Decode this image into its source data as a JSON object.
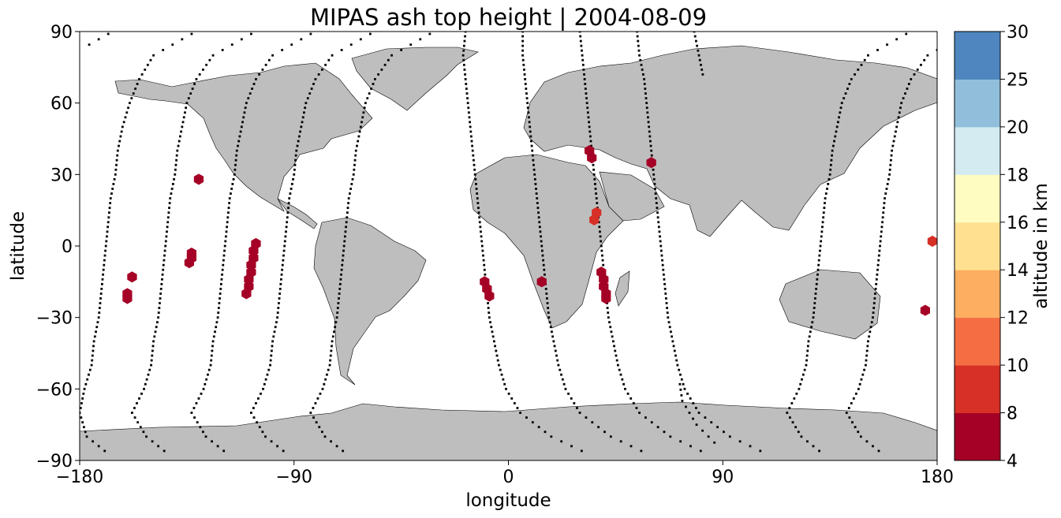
{
  "chart_data": {
    "type": "scatter",
    "title": "MIPAS ash top height | 2004-08-09",
    "xlabel": "longitude",
    "ylabel": "latitude",
    "xlim": [
      -180,
      180
    ],
    "ylim": [
      -90,
      90
    ],
    "xticks": [
      -180,
      -90,
      0,
      90,
      180
    ],
    "yticks": [
      -90,
      -60,
      -30,
      0,
      30,
      60,
      90
    ],
    "xtick_labels": [
      "−180",
      "−90",
      "0",
      "90",
      "180"
    ],
    "ytick_labels": [
      "−90",
      "−60",
      "−30",
      "0",
      "30",
      "60",
      "90"
    ],
    "basemap": "world land masses in grey (#bebebe) on white ocean, equirectangular projection",
    "colorbar": {
      "label": "altitude in km",
      "bounds": [
        4,
        8,
        10,
        12,
        14,
        16,
        18,
        20,
        25,
        30
      ],
      "tick_labels": [
        "4",
        "8",
        "10",
        "12",
        "14",
        "16",
        "18",
        "20",
        "25",
        "30"
      ],
      "colors": [
        "#a50026",
        "#d73027",
        "#f46d43",
        "#fdae61",
        "#fee090",
        "#fefcc0",
        "#d4ebf2",
        "#91bfdb",
        "#4f86c0",
        "#313695"
      ]
    },
    "series": [
      {
        "kind": "ash detections",
        "colors": {
          "7": "#a50026",
          "9": "#d73027"
        },
        "points": [
          {
            "lon": -130,
            "lat": 28,
            "alt": 7
          },
          {
            "lon": -158,
            "lat": -13,
            "alt": 7
          },
          {
            "lon": -160,
            "lat": -20,
            "alt": 7
          },
          {
            "lon": -160,
            "lat": -22,
            "alt": 7
          },
          {
            "lon": -133,
            "lat": -3,
            "alt": 7
          },
          {
            "lon": -133,
            "lat": -5,
            "alt": 7
          },
          {
            "lon": -134,
            "lat": -7,
            "alt": 7
          },
          {
            "lon": -106,
            "lat": 1,
            "alt": 7
          },
          {
            "lon": -107,
            "lat": -2,
            "alt": 7
          },
          {
            "lon": -107,
            "lat": -5,
            "alt": 7
          },
          {
            "lon": -108,
            "lat": -8,
            "alt": 7
          },
          {
            "lon": -108,
            "lat": -11,
            "alt": 7
          },
          {
            "lon": -109,
            "lat": -14,
            "alt": 7
          },
          {
            "lon": -109,
            "lat": -17,
            "alt": 7
          },
          {
            "lon": -110,
            "lat": -20,
            "alt": 7
          },
          {
            "lon": -10,
            "lat": -15,
            "alt": 7
          },
          {
            "lon": -9,
            "lat": -18,
            "alt": 7
          },
          {
            "lon": -8,
            "lat": -21,
            "alt": 7
          },
          {
            "lon": 14,
            "lat": -15,
            "alt": 7
          },
          {
            "lon": 34,
            "lat": 40,
            "alt": 7
          },
          {
            "lon": 35,
            "lat": 37,
            "alt": 7
          },
          {
            "lon": 60,
            "lat": 35,
            "alt": 7
          },
          {
            "lon": 37,
            "lat": 14,
            "alt": 9
          },
          {
            "lon": 36,
            "lat": 11,
            "alt": 9
          },
          {
            "lon": 39,
            "lat": -11,
            "alt": 7
          },
          {
            "lon": 40,
            "lat": -14,
            "alt": 7
          },
          {
            "lon": 40,
            "lat": -17,
            "alt": 7
          },
          {
            "lon": 41,
            "lat": -20,
            "alt": 7
          },
          {
            "lon": 41,
            "lat": -22,
            "alt": 7
          },
          {
            "lon": 178,
            "lat": 2,
            "alt": 9
          },
          {
            "lon": 175,
            "lat": -27,
            "alt": 7
          }
        ]
      },
      {
        "kind": "MIPAS orbit track (measurement locations)",
        "color": "#000000",
        "tracks": [
          {
            "lat": [
              89,
              80,
              70,
              60,
              50,
              40,
              30,
              20,
              10,
              0,
              -10,
              -20,
              -30,
              -40,
              -50,
              -60,
              -70,
              -80,
              -88
            ],
            "lon": [
              -133,
              -149,
              -155,
              -159,
              -162,
              -164,
              -165,
              -167,
              -168,
              -169,
              -170,
              -171,
              -172,
              -174,
              -175,
              -178,
              -180,
              -177,
              -167
            ]
          },
          {
            "lat": [
              89,
              80,
              70,
              60,
              50,
              40,
              30,
              20,
              10,
              0,
              -10,
              -20,
              -30,
              -40,
              -50,
              -60,
              -70,
              -80,
              -88
            ],
            "lon": [
              -108,
              -124,
              -131,
              -135,
              -137,
              -139,
              -140,
              -142,
              -143,
              -144,
              -145,
              -146,
              -147,
              -149,
              -150,
              -153,
              -158,
              -152,
              -142
            ]
          },
          {
            "lat": [
              89,
              80,
              70,
              60,
              50,
              40,
              30,
              20,
              10,
              0,
              -10,
              -20,
              -30,
              -40,
              -50,
              -60,
              -70,
              -80,
              -88
            ],
            "lon": [
              -83,
              -99,
              -106,
              -110,
              -112,
              -114,
              -115,
              -117,
              -118,
              -119,
              -120,
              -121,
              -122,
              -124,
              -125,
              -128,
              -133,
              -127,
              -117
            ]
          },
          {
            "lat": [
              89,
              80,
              70,
              60,
              50,
              40,
              30,
              20,
              10,
              0,
              -10,
              -20,
              -30,
              -40,
              -50,
              -60,
              -70,
              -80,
              -88
            ],
            "lon": [
              -58,
              -74,
              -81,
              -85,
              -87,
              -89,
              -90,
              -92,
              -93,
              -94,
              -95,
              -96,
              -97,
              -99,
              -100,
              -103,
              -108,
              -102,
              -92
            ]
          },
          {
            "lat": [
              89,
              80,
              70,
              60,
              50,
              40,
              30,
              20,
              10,
              0,
              -10,
              -20,
              -30,
              -40,
              -50,
              -60,
              -70,
              -80,
              -88
            ],
            "lon": [
              -33,
              -49,
              -56,
              -60,
              -62,
              -64,
              -65,
              -67,
              -68,
              -69,
              -70,
              -71,
              -72,
              -74,
              -75,
              -78,
              -83,
              -77,
              -67
            ]
          },
          {
            "lat": [
              90,
              80,
              70,
              60,
              50,
              40,
              30,
              20,
              10,
              0,
              -10,
              -20,
              -30,
              -40,
              -50,
              -60,
              -70,
              -80,
              -88
            ],
            "lon": [
              -18,
              -19,
              -18,
              -17,
              -16,
              -15,
              -14,
              -13,
              -12,
              -11,
              -10,
              -9,
              -8,
              -6,
              -4,
              -1,
              5,
              18,
              35
            ]
          },
          {
            "lat": [
              90,
              80,
              70,
              60,
              50,
              40,
              30,
              20,
              10,
              0,
              -10,
              -20,
              -30,
              -40,
              -50,
              -60,
              -70,
              -80,
              -88
            ],
            "lon": [
              6,
              6,
              7,
              8,
              9,
              10,
              11,
              12,
              13,
              14,
              15,
              16,
              17,
              19,
              21,
              24,
              30,
              43,
              60
            ]
          },
          {
            "lat": [
              90,
              80,
              70,
              60,
              50,
              40,
              30,
              20,
              10,
              0,
              -10,
              -20,
              -30,
              -40,
              -50,
              -60,
              -70,
              -80,
              -88
            ],
            "lon": [
              30,
              31,
              32,
              33,
              34,
              35,
              36,
              37,
              38,
              39,
              40,
              41,
              42,
              44,
              46,
              49,
              55,
              68,
              85
            ]
          },
          {
            "lat": [
              90,
              80,
              70,
              60,
              50,
              40,
              30,
              20,
              10,
              0,
              -10,
              -20,
              -30,
              -40,
              -50,
              -60,
              -70,
              -80,
              -88
            ],
            "lon": [
              54,
              55,
              57,
              58,
              59,
              60,
              61,
              62,
              63,
              64,
              65,
              66,
              67,
              69,
              71,
              74,
              80,
              93,
              110
            ]
          },
          {
            "lat": [
              90,
              80,
              70
            ],
            "lon": [
              78,
              80,
              82
            ]
          },
          {
            "lat": [
              -58,
              -65,
              -70,
              -75,
              -80,
              -85
            ],
            "lon": [
              72,
              73,
              76,
              79,
              84,
              89
            ]
          },
          {
            "lat": [
              89,
              80,
              70,
              60,
              50,
              40,
              30,
              20,
              10,
              0,
              -10,
              -20,
              -30,
              -40,
              -50,
              -60,
              -70,
              -80,
              -88
            ],
            "lon": [
              167,
              151,
              144,
              140,
              138,
              136,
              135,
              133,
              132,
              131,
              130,
              129,
              128,
              126,
              125,
              122,
              117,
              123,
              133
            ]
          },
          {
            "lat": [
              89,
              80,
              70,
              60,
              50,
              40,
              30,
              20,
              10,
              0,
              -10,
              -20,
              -30,
              -40,
              -50,
              -60,
              -70,
              -80,
              -88
            ],
            "lon": [
              192,
              176,
              169,
              165,
              163,
              161,
              160,
              158,
              157,
              156,
              155,
              154,
              153,
              151,
              150,
              147,
              142,
              148,
              158
            ]
          }
        ]
      }
    ]
  }
}
